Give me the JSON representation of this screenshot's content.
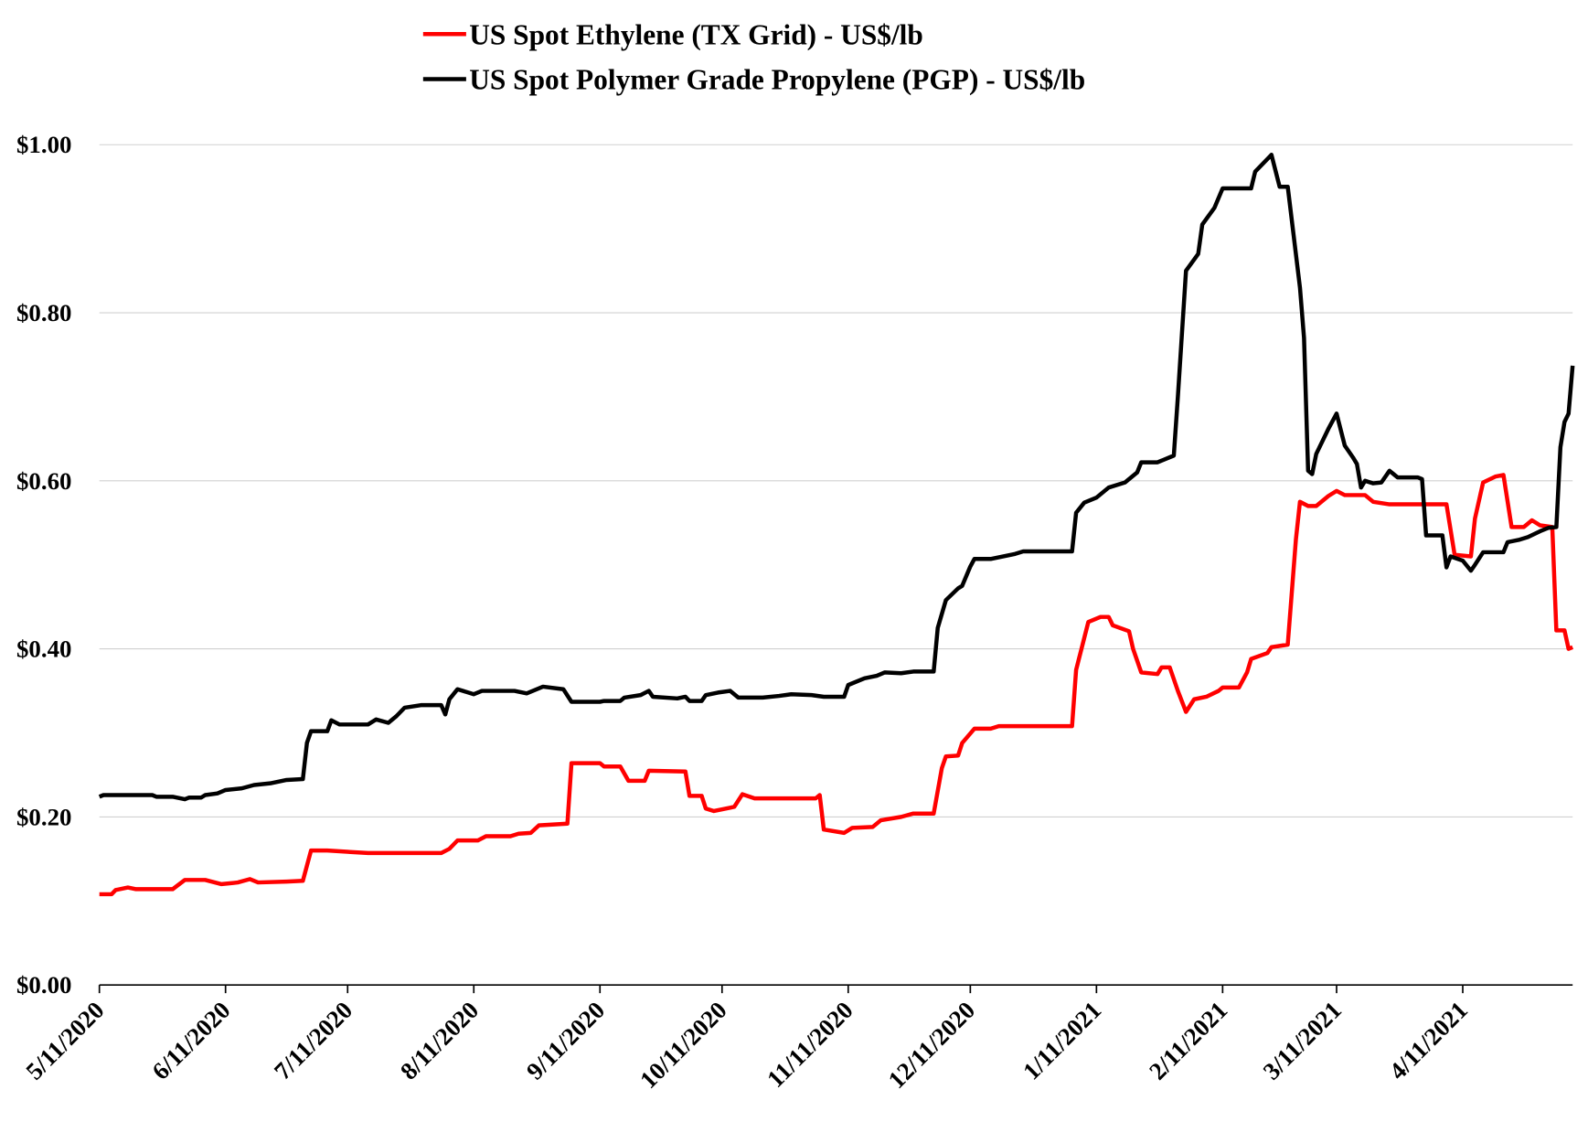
{
  "chart_data": {
    "type": "line",
    "series": [
      {
        "name": "US Spot Ethylene (TX Grid) - US$/lb",
        "color": "#ff0000",
        "x": [
          "2020-05-11",
          "2020-05-14",
          "2020-05-15",
          "2020-05-18",
          "2020-05-20",
          "2020-05-29",
          "2020-06-01",
          "2020-06-06",
          "2020-06-10",
          "2020-06-14",
          "2020-06-17",
          "2020-06-19",
          "2020-06-26",
          "2020-06-30",
          "2020-07-02",
          "2020-07-06",
          "2020-07-16",
          "2020-08-03",
          "2020-08-05",
          "2020-08-07",
          "2020-08-12",
          "2020-08-14",
          "2020-08-20",
          "2020-08-22",
          "2020-08-25",
          "2020-08-27",
          "2020-09-03",
          "2020-09-04",
          "2020-09-11",
          "2020-09-12",
          "2020-09-16",
          "2020-09-18",
          "2020-09-22",
          "2020-09-23",
          "2020-10-02",
          "2020-10-03",
          "2020-10-06",
          "2020-10-07",
          "2020-10-09",
          "2020-10-13",
          "2020-10-14",
          "2020-10-16",
          "2020-10-19",
          "2020-11-03",
          "2020-11-04",
          "2020-11-05",
          "2020-11-10",
          "2020-11-12",
          "2020-11-17",
          "2020-11-19",
          "2020-11-24",
          "2020-11-27",
          "2020-12-02",
          "2020-12-04",
          "2020-12-05",
          "2020-12-08",
          "2020-12-09",
          "2020-12-12",
          "2020-12-16",
          "2020-12-18",
          "2021-01-05",
          "2021-01-06",
          "2021-01-09",
          "2021-01-12",
          "2021-01-14",
          "2021-01-15",
          "2021-01-19",
          "2021-01-20",
          "2021-01-22",
          "2021-01-26",
          "2021-01-27",
          "2021-01-29",
          "2021-01-31",
          "2021-02-02",
          "2021-02-04",
          "2021-02-07",
          "2021-02-10",
          "2021-02-11",
          "2021-02-15",
          "2021-02-17",
          "2021-02-18",
          "2021-02-22",
          "2021-02-23",
          "2021-02-27",
          "2021-03-01",
          "2021-03-02",
          "2021-03-04",
          "2021-03-06",
          "2021-03-09",
          "2021-03-11",
          "2021-03-13",
          "2021-03-18",
          "2021-03-20",
          "2021-03-24",
          "2021-04-07",
          "2021-04-09",
          "2021-04-13",
          "2021-04-14",
          "2021-04-16",
          "2021-04-19",
          "2021-04-21",
          "2021-04-23",
          "2021-04-26",
          "2021-04-28",
          "2021-04-30",
          "2021-05-03",
          "2021-05-04",
          "2021-05-06",
          "2021-05-07",
          "2021-05-08"
        ],
        "values": [
          0.108,
          0.108,
          0.113,
          0.116,
          0.114,
          0.114,
          0.125,
          0.125,
          0.12,
          0.122,
          0.126,
          0.122,
          0.123,
          0.124,
          0.16,
          0.16,
          0.157,
          0.157,
          0.162,
          0.172,
          0.172,
          0.177,
          0.177,
          0.18,
          0.181,
          0.19,
          0.192,
          0.264,
          0.264,
          0.26,
          0.26,
          0.243,
          0.243,
          0.255,
          0.254,
          0.225,
          0.225,
          0.21,
          0.207,
          0.211,
          0.212,
          0.227,
          0.222,
          0.222,
          0.226,
          0.185,
          0.181,
          0.187,
          0.188,
          0.196,
          0.2,
          0.204,
          0.204,
          0.258,
          0.272,
          0.273,
          0.288,
          0.305,
          0.305,
          0.308,
          0.308,
          0.375,
          0.432,
          0.438,
          0.438,
          0.428,
          0.421,
          0.4,
          0.372,
          0.37,
          0.378,
          0.378,
          0.35,
          0.325,
          0.34,
          0.343,
          0.35,
          0.354,
          0.354,
          0.372,
          0.388,
          0.395,
          0.402,
          0.405,
          0.53,
          0.575,
          0.57,
          0.57,
          0.582,
          0.588,
          0.583,
          0.583,
          0.575,
          0.572,
          0.572,
          0.512,
          0.51,
          0.555,
          0.598,
          0.605,
          0.607,
          0.545,
          0.545,
          0.553,
          0.547,
          0.545,
          0.422,
          0.422,
          0.4,
          0.402
        ]
      },
      {
        "name": "US Spot Polymer Grade Propylene (PGP) - US$/lb",
        "color": "#000000",
        "x": [
          "2020-05-11",
          "2020-05-12",
          "2020-05-24",
          "2020-05-25",
          "2020-05-29",
          "2020-06-01",
          "2020-06-02",
          "2020-06-05",
          "2020-06-06",
          "2020-06-09",
          "2020-06-11",
          "2020-06-15",
          "2020-06-18",
          "2020-06-22",
          "2020-06-26",
          "2020-06-30",
          "2020-07-01",
          "2020-07-02",
          "2020-07-06",
          "2020-07-07",
          "2020-07-09",
          "2020-07-16",
          "2020-07-18",
          "2020-07-21",
          "2020-07-23",
          "2020-07-25",
          "2020-07-29",
          "2020-08-03",
          "2020-08-04",
          "2020-08-05",
          "2020-08-07",
          "2020-08-11",
          "2020-08-13",
          "2020-08-21",
          "2020-08-24",
          "2020-08-28",
          "2020-09-02",
          "2020-09-04",
          "2020-09-11",
          "2020-09-12",
          "2020-09-16",
          "2020-09-17",
          "2020-09-21",
          "2020-09-23",
          "2020-09-24",
          "2020-09-30",
          "2020-10-02",
          "2020-10-03",
          "2020-10-06",
          "2020-10-07",
          "2020-10-10",
          "2020-10-13",
          "2020-10-15",
          "2020-10-21",
          "2020-10-25",
          "2020-10-28",
          "2020-11-02",
          "2020-11-05",
          "2020-11-10",
          "2020-11-11",
          "2020-11-15",
          "2020-11-18",
          "2020-11-20",
          "2020-11-24",
          "2020-11-27",
          "2020-12-02",
          "2020-12-03",
          "2020-12-05",
          "2020-12-08",
          "2020-12-09",
          "2020-12-11",
          "2020-12-12",
          "2020-12-16",
          "2020-12-22",
          "2020-12-24",
          "2021-01-05",
          "2021-01-06",
          "2021-01-08",
          "2021-01-11",
          "2021-01-14",
          "2021-01-18",
          "2021-01-21",
          "2021-01-22",
          "2021-01-26",
          "2021-01-30",
          "2021-01-31",
          "2021-02-02",
          "2021-02-05",
          "2021-02-06",
          "2021-02-09",
          "2021-02-11",
          "2021-02-18",
          "2021-02-19",
          "2021-02-23",
          "2021-02-25",
          "2021-02-27",
          "2021-03-02",
          "2021-03-03",
          "2021-03-04",
          "2021-03-05",
          "2021-03-06",
          "2021-03-09",
          "2021-03-11",
          "2021-03-13",
          "2021-03-15",
          "2021-03-16",
          "2021-03-17",
          "2021-03-18",
          "2021-03-20",
          "2021-03-22",
          "2021-03-24",
          "2021-03-26",
          "2021-03-31",
          "2021-04-01",
          "2021-04-02",
          "2021-04-06",
          "2021-04-07",
          "2021-04-08",
          "2021-04-11",
          "2021-04-13",
          "2021-04-14",
          "2021-04-16",
          "2021-04-21",
          "2021-04-22",
          "2021-04-25",
          "2021-04-27",
          "2021-04-30",
          "2021-05-02",
          "2021-05-04",
          "2021-05-05",
          "2021-05-06",
          "2021-05-07",
          "2021-05-08"
        ],
        "values": [
          0.224,
          0.226,
          0.226,
          0.224,
          0.224,
          0.221,
          0.223,
          0.223,
          0.226,
          0.228,
          0.232,
          0.234,
          0.238,
          0.24,
          0.244,
          0.245,
          0.288,
          0.302,
          0.302,
          0.315,
          0.31,
          0.31,
          0.316,
          0.312,
          0.32,
          0.33,
          0.333,
          0.333,
          0.322,
          0.34,
          0.352,
          0.346,
          0.35,
          0.35,
          0.347,
          0.355,
          0.352,
          0.337,
          0.337,
          0.338,
          0.338,
          0.342,
          0.345,
          0.35,
          0.343,
          0.341,
          0.343,
          0.338,
          0.338,
          0.345,
          0.348,
          0.35,
          0.342,
          0.342,
          0.344,
          0.346,
          0.345,
          0.343,
          0.343,
          0.357,
          0.365,
          0.368,
          0.372,
          0.371,
          0.373,
          0.373,
          0.425,
          0.458,
          0.472,
          0.475,
          0.498,
          0.507,
          0.507,
          0.513,
          0.516,
          0.516,
          0.562,
          0.574,
          0.58,
          0.592,
          0.598,
          0.61,
          0.622,
          0.622,
          0.63,
          0.7,
          0.85,
          0.87,
          0.905,
          0.925,
          0.948,
          0.948,
          0.968,
          0.988,
          0.95,
          0.95,
          0.83,
          0.77,
          0.612,
          0.608,
          0.632,
          0.662,
          0.68,
          0.642,
          0.628,
          0.62,
          0.592,
          0.6,
          0.597,
          0.598,
          0.612,
          0.604,
          0.604,
          0.602,
          0.535,
          0.535,
          0.497,
          0.51,
          0.505,
          0.493,
          0.5,
          0.515,
          0.515,
          0.527,
          0.53,
          0.533,
          0.54,
          0.544,
          0.545,
          0.64,
          0.67,
          0.68,
          0.737
        ]
      }
    ],
    "xlim": [
      "2020-05-11",
      "2021-05-08"
    ],
    "xticks": [
      {
        "value": "2020-05-11",
        "label": "5/11/2020"
      },
      {
        "value": "2020-06-11",
        "label": "6/11/2020"
      },
      {
        "value": "2020-07-11",
        "label": "7/11/2020"
      },
      {
        "value": "2020-08-11",
        "label": "8/11/2020"
      },
      {
        "value": "2020-09-11",
        "label": "9/11/2020"
      },
      {
        "value": "2020-10-11",
        "label": "10/11/2020"
      },
      {
        "value": "2020-11-11",
        "label": "11/11/2020"
      },
      {
        "value": "2020-12-11",
        "label": "12/11/2020"
      },
      {
        "value": "2021-01-11",
        "label": "1/11/2021"
      },
      {
        "value": "2021-02-11",
        "label": "2/11/2021"
      },
      {
        "value": "2021-03-11",
        "label": "3/11/2021"
      },
      {
        "value": "2021-04-11",
        "label": "4/11/2021"
      }
    ],
    "ylim": [
      0,
      1.0
    ],
    "yticks": [
      {
        "value": 0,
        "label": "$0.00"
      },
      {
        "value": 0.2,
        "label": "$0.20"
      },
      {
        "value": 0.4,
        "label": "$0.40"
      },
      {
        "value": 0.6,
        "label": "$0.60"
      },
      {
        "value": 0.8,
        "label": "$0.80"
      },
      {
        "value": 1.0,
        "label": "$1.00"
      }
    ],
    "grid": true,
    "legend": "top"
  }
}
